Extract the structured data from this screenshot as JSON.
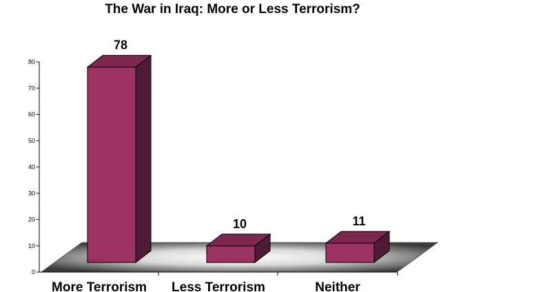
{
  "chart_data": {
    "type": "bar",
    "title": "The War in Iraq: More or Less Terrorism?",
    "categories": [
      "More Terrorism",
      "Less Terrorism",
      "Neither"
    ],
    "values": [
      78,
      10,
      11
    ],
    "data_labels": [
      "78",
      "10",
      "11"
    ],
    "ylim": [
      0,
      80
    ],
    "yticks": [
      0,
      10,
      20,
      30,
      40,
      50,
      60,
      70,
      80
    ],
    "xlabel": "",
    "ylabel": "",
    "grid": false,
    "legend": "none",
    "style": "3d",
    "colors": {
      "bar_front": "#9c3262",
      "bar_top": "#7c2650",
      "bar_side": "#4e1c34",
      "outline": "#000000"
    }
  }
}
